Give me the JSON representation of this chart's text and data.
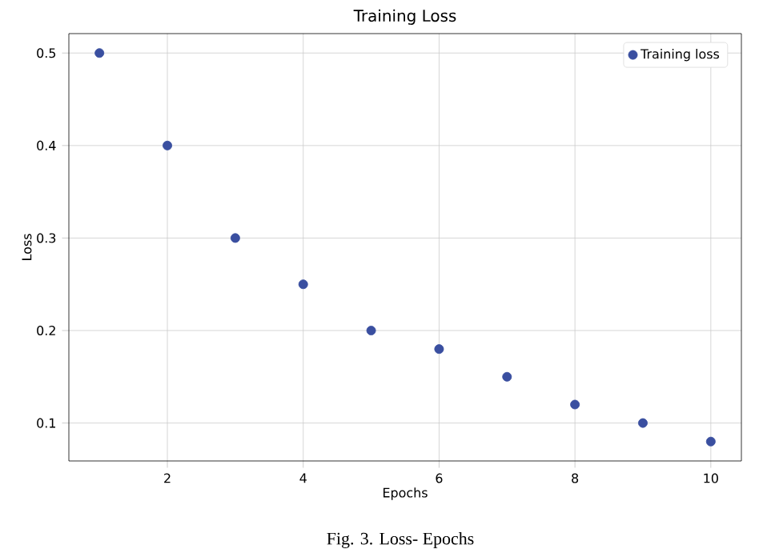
{
  "chart_data": {
    "type": "scatter",
    "title": "Training Loss",
    "xlabel": "Epochs",
    "ylabel": "Loss",
    "annotations": [
      "Fig. 3.  Loss- Epochs"
    ],
    "x": [
      1,
      2,
      3,
      4,
      5,
      6,
      7,
      8,
      9,
      10
    ],
    "series": [
      {
        "name": "Training loss",
        "color": "#3a4fa0",
        "values": [
          0.5,
          0.4,
          0.3,
          0.25,
          0.2,
          0.18,
          0.15,
          0.12,
          0.1,
          0.08
        ]
      }
    ],
    "xlim": [
      0.55,
      10.45
    ],
    "ylim": [
      0.059,
      0.521
    ],
    "xticks": [
      2,
      4,
      6,
      8,
      10
    ],
    "yticks": [
      0.1,
      0.2,
      0.3,
      0.4,
      0.5
    ],
    "grid": true,
    "legend": "top right",
    "marker": "circle"
  }
}
